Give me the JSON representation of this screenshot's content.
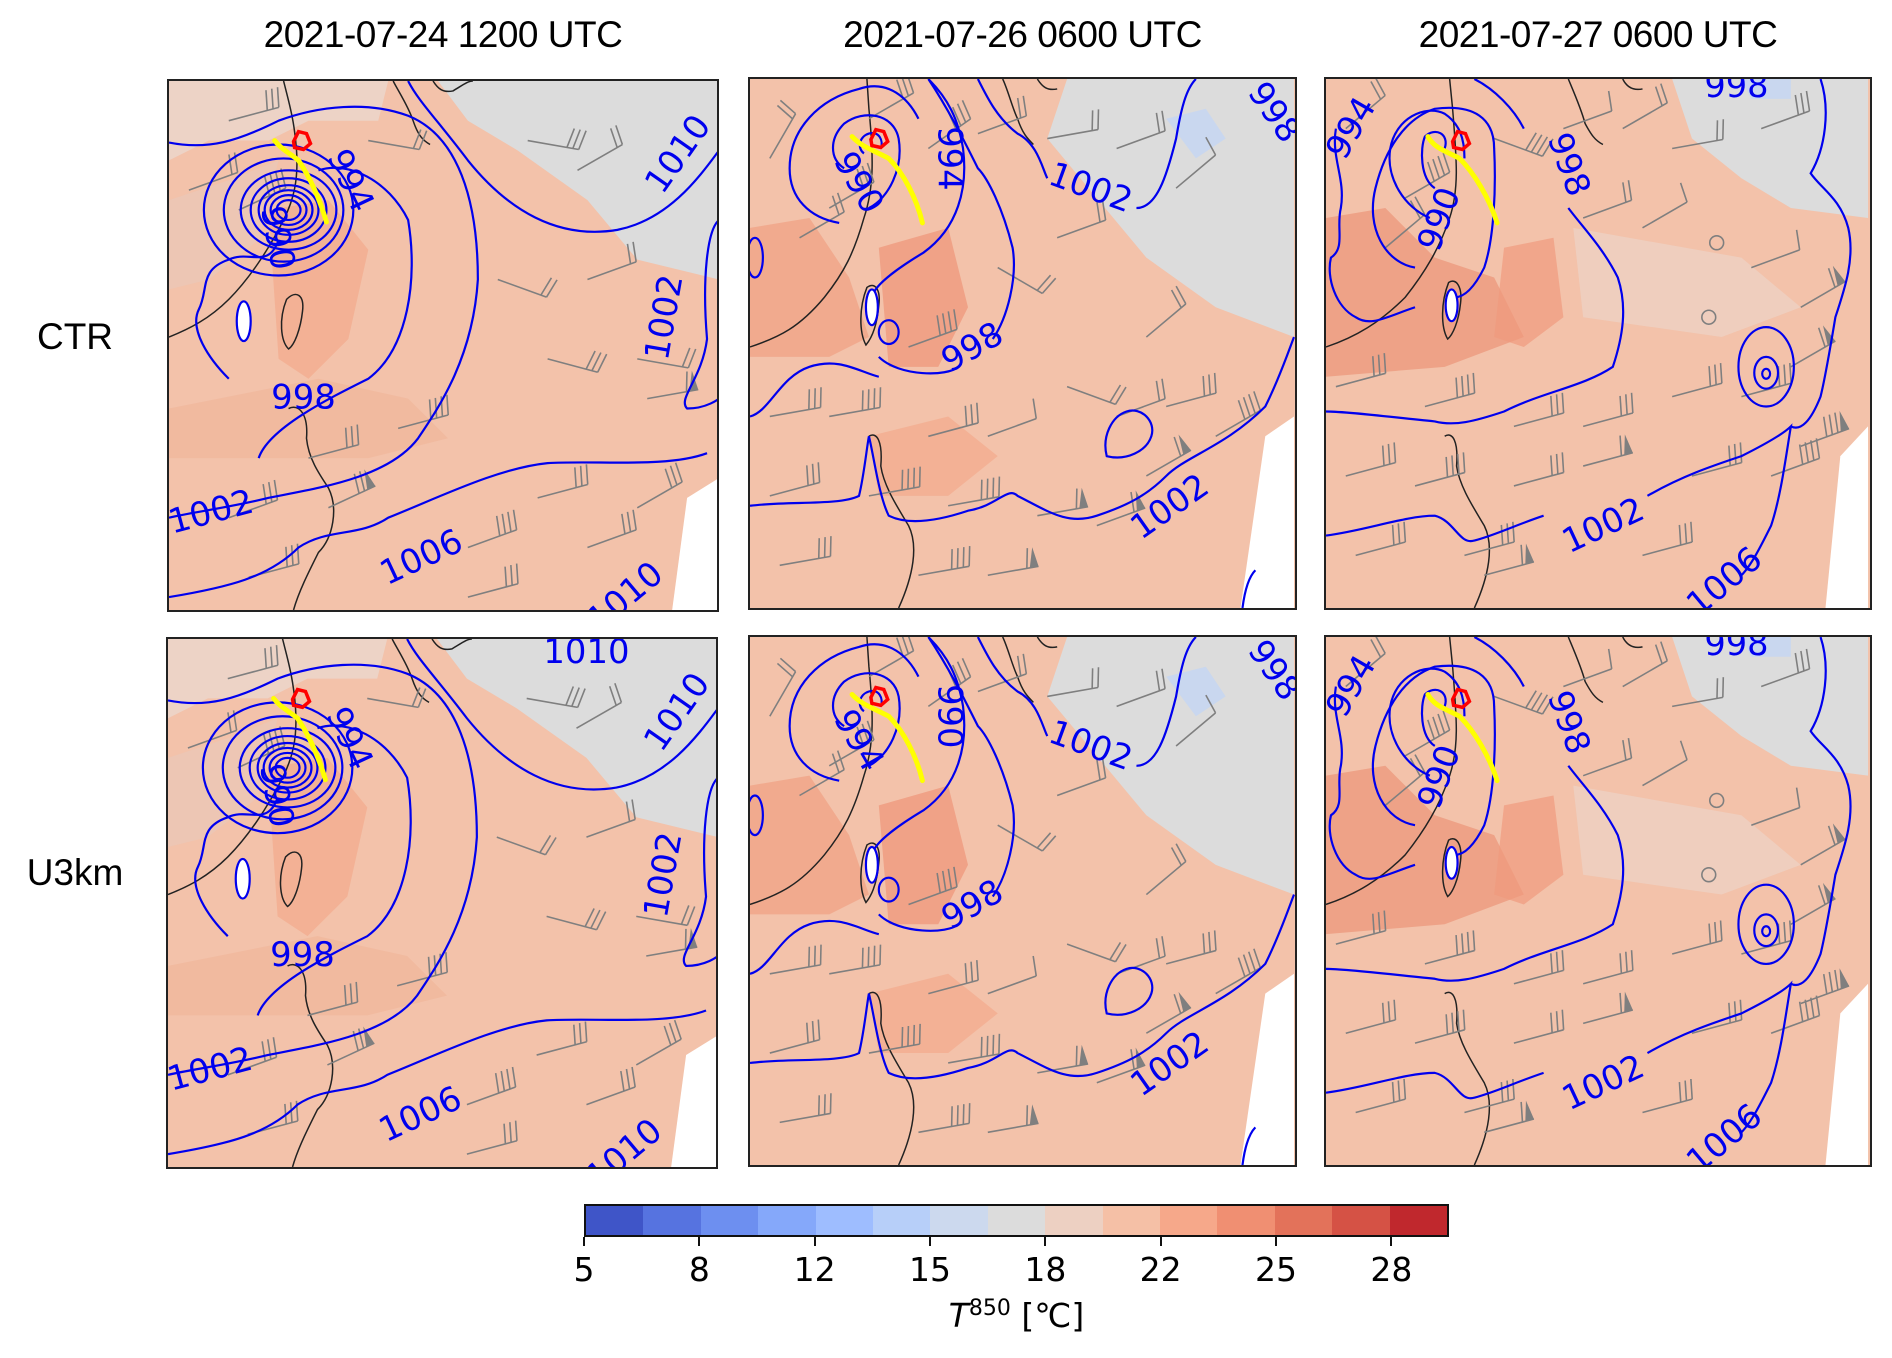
{
  "figure": {
    "column_titles": [
      "2021-07-24 1200 UTC",
      "2021-07-26 0600 UTC",
      "2021-07-27 0600 UTC"
    ],
    "row_labels": [
      "CTR",
      "U3km"
    ],
    "panels": [
      {
        "row": "CTR",
        "time": "2021-07-24 1200 UTC",
        "isobar_labels": [
          "994",
          "990",
          "998",
          "1002",
          "1006",
          "1010",
          "1002",
          "1010"
        ]
      },
      {
        "row": "CTR",
        "time": "2021-07-26 0600 UTC",
        "isobar_labels": [
          "990",
          "994",
          "998",
          "1002",
          "1002",
          "998"
        ]
      },
      {
        "row": "CTR",
        "time": "2021-07-27 0600 UTC",
        "isobar_labels": [
          "994",
          "990",
          "998",
          "998",
          "1002",
          "1006"
        ]
      },
      {
        "row": "U3km",
        "time": "2021-07-24 1200 UTC",
        "isobar_labels": [
          "1010",
          "994",
          "990",
          "998",
          "1002",
          "1006",
          "1010",
          "1002",
          "1010"
        ]
      },
      {
        "row": "U3km",
        "time": "2021-07-26 0600 UTC",
        "isobar_labels": [
          "994",
          "990",
          "998",
          "1002",
          "1002",
          "998"
        ]
      },
      {
        "row": "U3km",
        "time": "2021-07-27 0600 UTC",
        "isobar_labels": [
          "994",
          "990",
          "998",
          "998",
          "1002",
          "1006"
        ]
      }
    ],
    "layers": {
      "shading": "850 hPa temperature",
      "contours": "sea level pressure (hPa), blue",
      "track": "yellow typhoon track",
      "marker": "red outline",
      "barbs": "gray wind barbs"
    },
    "colors": {
      "isobar": "#0000ee",
      "track": "#ffff00",
      "marker": "#ff0000",
      "barb": "#7f7f7f",
      "coast": "#222222"
    }
  },
  "colorbar": {
    "label_var": "T",
    "label_sup": "850",
    "label_unit": " [℃]",
    "range": [
      5,
      30
    ],
    "tick_labels": [
      "5",
      "8",
      "12",
      "15",
      "18",
      "22",
      "25",
      "28"
    ],
    "bin_colors": [
      "#3f55c8",
      "#5673e0",
      "#6d8ff0",
      "#85a8fa",
      "#9ebdff",
      "#b7cff9",
      "#ccd9ee",
      "#dcdcdc",
      "#edd0c2",
      "#f5c0a6",
      "#f6a88a",
      "#f08f72",
      "#e3725a",
      "#d55245",
      "#c0282d"
    ]
  }
}
